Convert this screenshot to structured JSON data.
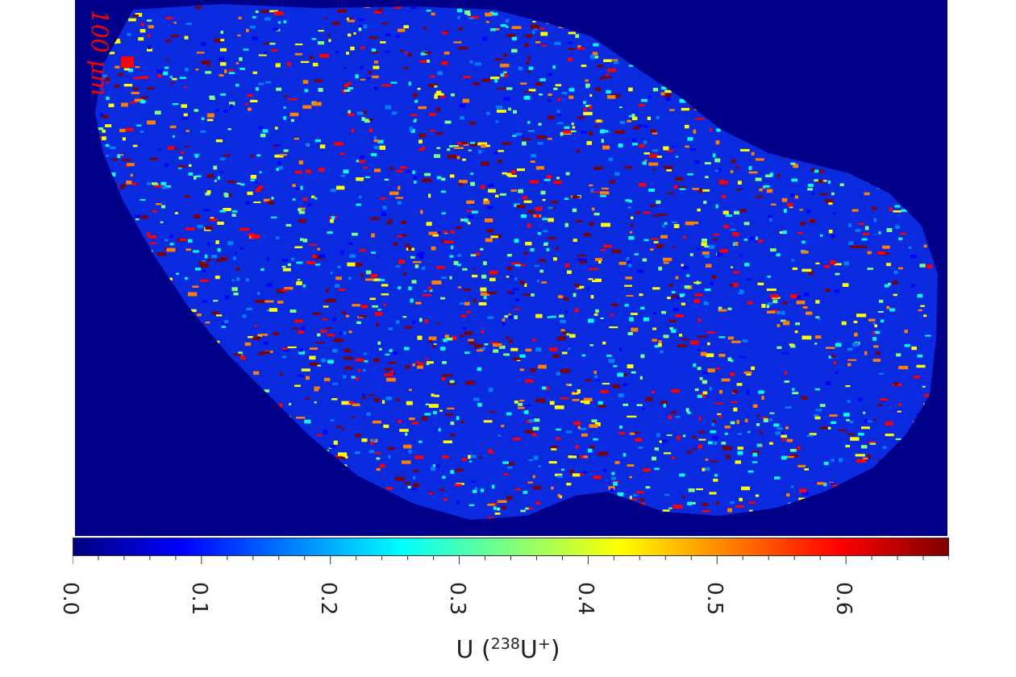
{
  "scale_bar": {
    "label": "100 μm",
    "color": "#ff0000"
  },
  "chart_data": {
    "type": "heatmap",
    "title": "",
    "colormap": "jet",
    "background_color": "#00008a",
    "colorbar": {
      "orientation": "horizontal",
      "range": [
        0.0,
        0.68
      ],
      "ticks": [
        "0.0",
        "0.1",
        "0.2",
        "0.3",
        "0.4",
        "0.5",
        "0.6"
      ],
      "tick_values": [
        0.0,
        0.1,
        0.2,
        0.3,
        0.4,
        0.5,
        0.6
      ],
      "label_main": "U (",
      "label_isotope_mass": "238",
      "label_ion": "U",
      "label_charge": "+",
      "label_close": ")"
    },
    "stops": [
      "#00007f",
      "#0000ff",
      "#007fff",
      "#00ffff",
      "#7fff7f",
      "#ffff00",
      "#ff7f00",
      "#ff0000",
      "#7f0000"
    ]
  }
}
